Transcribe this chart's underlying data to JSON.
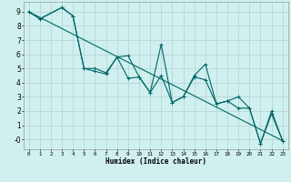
{
  "xlabel": "Humidex (Indice chaleur)",
  "bg_color": "#d0f0f0",
  "grid_color": "#b8d8d8",
  "line_color": "#006666",
  "xlim": [
    -0.5,
    23.5
  ],
  "ylim": [
    -0.7,
    9.7
  ],
  "xtick_vals": [
    0,
    1,
    2,
    3,
    4,
    5,
    6,
    7,
    8,
    9,
    10,
    11,
    12,
    13,
    14,
    15,
    16,
    17,
    18,
    19,
    20,
    21,
    22,
    23
  ],
  "xtick_labels": [
    "0",
    "1",
    "2",
    "3",
    "4",
    "5",
    "6",
    "7",
    "8",
    "9",
    "10",
    "11",
    "12",
    "13",
    "14",
    "15",
    "16",
    "17",
    "18",
    "19",
    "20",
    "21",
    "22",
    "23"
  ],
  "ytick_vals": [
    0,
    1,
    2,
    3,
    4,
    5,
    6,
    7,
    8,
    9
  ],
  "ytick_labels": [
    "-0",
    "1",
    "2",
    "3",
    "4",
    "5",
    "6",
    "7",
    "8",
    "9"
  ],
  "series1_x": [
    0,
    1,
    3,
    4,
    5,
    6,
    7,
    8,
    9,
    10,
    11,
    12,
    13,
    14,
    15,
    16,
    17,
    18,
    19,
    20,
    21,
    22,
    23
  ],
  "series1_y": [
    9.0,
    8.5,
    9.3,
    8.7,
    5.0,
    5.0,
    4.7,
    5.8,
    4.3,
    4.4,
    3.3,
    6.7,
    2.6,
    3.0,
    4.5,
    5.3,
    2.5,
    2.7,
    3.0,
    2.2,
    -0.3,
    2.0,
    -0.1
  ],
  "series2_x": [
    0,
    1,
    3,
    4,
    5,
    6,
    7,
    8,
    9,
    10,
    11,
    12,
    13,
    14,
    15,
    16,
    17,
    18,
    19,
    20,
    21,
    22,
    23
  ],
  "series2_y": [
    9.0,
    8.5,
    9.3,
    8.7,
    5.0,
    4.8,
    4.6,
    5.8,
    5.9,
    4.4,
    3.3,
    4.5,
    2.6,
    3.0,
    4.4,
    4.2,
    2.5,
    2.7,
    2.2,
    2.2,
    -0.3,
    1.8,
    -0.1
  ],
  "trend_x": [
    0,
    23
  ],
  "trend_y": [
    9.0,
    -0.1
  ]
}
